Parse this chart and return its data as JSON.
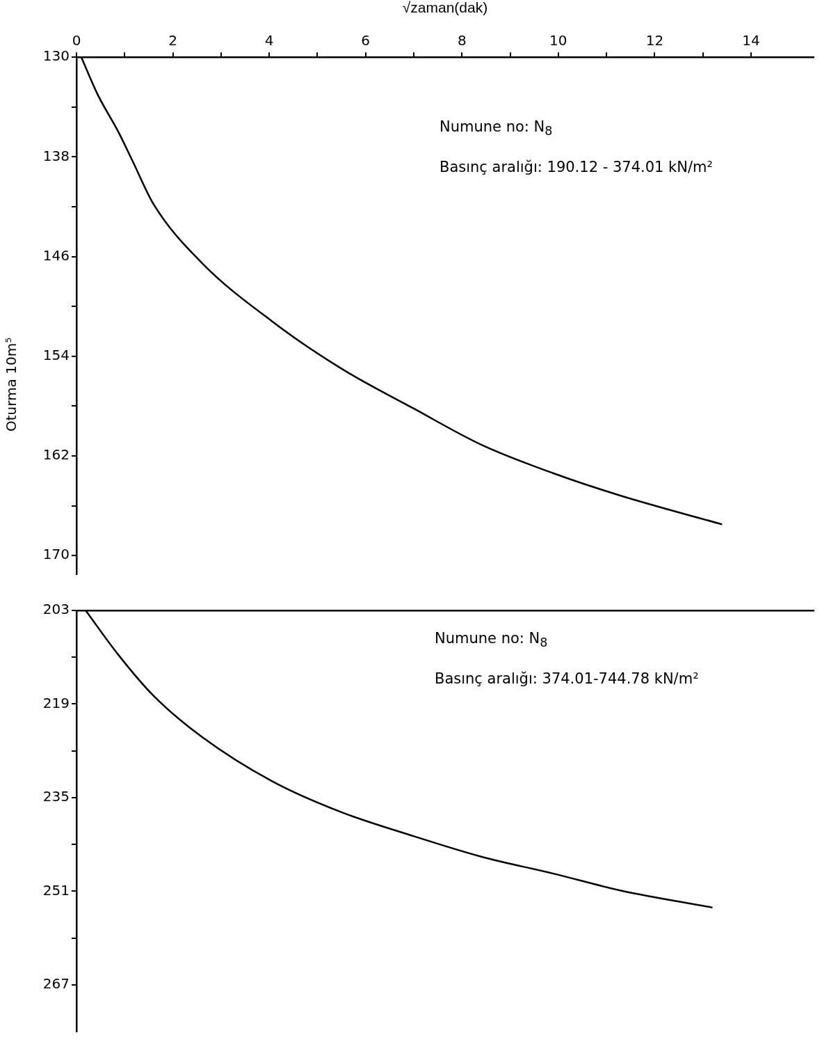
{
  "chart_data": [
    {
      "type": "line",
      "xlabel": "√zaman(dak)",
      "ylabel": "Oturma 10m⁵",
      "xlim": [
        0,
        15.3
      ],
      "ylim": [
        171.5,
        130
      ],
      "xticks": [
        0,
        {
          "value": 1,
          "label": null
        },
        2,
        {
          "value": 3,
          "label": null
        },
        4,
        {
          "value": 5,
          "label": null
        },
        6,
        {
          "value": 7,
          "label": null
        },
        8,
        {
          "value": 9,
          "label": null
        },
        10,
        {
          "value": 11,
          "label": null
        },
        12,
        {
          "value": 13,
          "label": null
        },
        14
      ],
      "yticks": [
        130,
        {
          "value": 134,
          "label": null
        },
        138,
        {
          "value": 142,
          "label": null
        },
        146,
        {
          "value": 150,
          "label": null
        },
        154,
        {
          "value": 158,
          "label": null
        },
        162,
        {
          "value": 166,
          "label": null
        },
        170
      ],
      "series": [
        {
          "color": "#000000",
          "x": [
            0.1,
            0.44,
            0.87,
            1.16,
            1.6,
            2.6,
            4.06,
            5.5,
            7,
            8.4,
            9.9,
            11.3,
            13.4
          ],
          "values": [
            130,
            133,
            136,
            138.3,
            141.8,
            146.5,
            151.2,
            155,
            158.2,
            161.1,
            163.4,
            165.2,
            167.5
          ]
        }
      ],
      "annotations": [
        "Numune no: N$_{8}$",
        "Basınç aralığı: 190.12 - 374.01 kN/m²"
      ],
      "marker": "none",
      "line_style": "solid"
    },
    {
      "type": "line",
      "xlim": [
        0,
        15.3
      ],
      "ylim": [
        275,
        203
      ],
      "tick_labels": "y",
      "yticks": [
        203,
        {
          "value": 211,
          "label": null
        },
        219,
        {
          "value": 227,
          "label": null
        },
        235,
        {
          "value": 243,
          "label": null
        },
        251,
        {
          "value": 259,
          "label": null
        },
        267
      ],
      "series": [
        {
          "color": "#000000",
          "x": [
            0.19,
            0.87,
            1.6,
            2.6,
            4.06,
            5.5,
            7,
            8.4,
            9.9,
            11.3,
            13.2
          ],
          "values": [
            203,
            210.6,
            217.6,
            224.6,
            232.2,
            237.5,
            241.6,
            245.1,
            248,
            250.9,
            253.8
          ]
        }
      ],
      "annotations": [
        "Numune no: N$_{8}$",
        "Basınç aralığı: 374.01-744.78 kN/m²"
      ],
      "marker": "none",
      "line_style": "solid"
    }
  ]
}
